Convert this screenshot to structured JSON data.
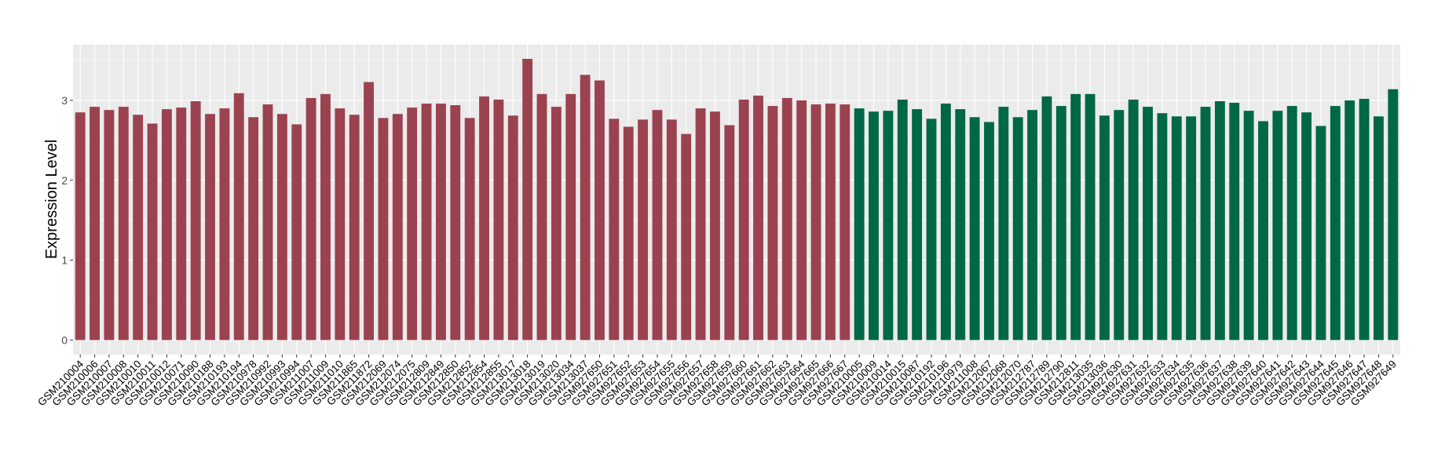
{
  "chart_data": {
    "type": "bar",
    "title": "",
    "xlabel": "",
    "ylabel": "Expression Level",
    "ylim": [
      -0.18,
      3.7
    ],
    "yticks": [
      0,
      1,
      2,
      3
    ],
    "grid": true,
    "legend": "none",
    "colors": {
      "group1": "#9B4250",
      "group2": "#006845",
      "panel": "#EBEBEB",
      "grid": "#FFFFFF"
    },
    "categories": [
      "GSM210004",
      "GSM210006",
      "GSM210007",
      "GSM210008",
      "GSM210010",
      "GSM210011",
      "GSM210012",
      "GSM210071",
      "GSM210090",
      "GSM210188",
      "GSM210193",
      "GSM210194",
      "GSM210978",
      "GSM210992",
      "GSM210993",
      "GSM210994",
      "GSM211007",
      "GSM211009",
      "GSM211010",
      "GSM211865",
      "GSM211872",
      "GSM212069",
      "GSM212074",
      "GSM212075",
      "GSM212809",
      "GSM212849",
      "GSM212850",
      "GSM212852",
      "GSM212854",
      "GSM212855",
      "GSM213017",
      "GSM213018",
      "GSM213019",
      "GSM213020",
      "GSM213034",
      "GSM213037",
      "GSM927650",
      "GSM927651",
      "GSM927652",
      "GSM927653",
      "GSM927654",
      "GSM927655",
      "GSM927656",
      "GSM927657",
      "GSM927658",
      "GSM927659",
      "GSM927660",
      "GSM927661",
      "GSM927662",
      "GSM927663",
      "GSM927664",
      "GSM927665",
      "GSM927666",
      "GSM927667",
      "GSM210005",
      "GSM210009",
      "GSM210014",
      "GSM210015",
      "GSM210087",
      "GSM210192",
      "GSM210196",
      "GSM210979",
      "GSM211008",
      "GSM212067",
      "GSM212068",
      "GSM212070",
      "GSM212787",
      "GSM212789",
      "GSM212790",
      "GSM212811",
      "GSM213035",
      "GSM213036",
      "GSM927630",
      "GSM927631",
      "GSM927632",
      "GSM927633",
      "GSM927634",
      "GSM927635",
      "GSM927636",
      "GSM927637",
      "GSM927638",
      "GSM927639",
      "GSM927640",
      "GSM927641",
      "GSM927642",
      "GSM927643",
      "GSM927644",
      "GSM927645",
      "GSM927646",
      "GSM927647",
      "GSM927648",
      "GSM927649"
    ],
    "values": [
      2.85,
      2.92,
      2.88,
      2.92,
      2.82,
      2.71,
      2.89,
      2.91,
      2.99,
      2.83,
      2.9,
      3.09,
      2.79,
      2.95,
      2.83,
      2.7,
      3.03,
      3.08,
      2.9,
      2.82,
      3.23,
      2.78,
      2.83,
      2.91,
      2.96,
      2.96,
      2.94,
      2.78,
      3.05,
      3.01,
      2.81,
      3.52,
      3.08,
      2.92,
      3.08,
      3.32,
      3.25,
      2.77,
      2.67,
      2.76,
      2.88,
      2.76,
      2.58,
      2.9,
      2.86,
      2.69,
      3.01,
      3.06,
      2.93,
      3.03,
      3.0,
      2.95,
      2.96,
      2.95,
      2.9,
      2.86,
      2.87,
      3.01,
      2.89,
      2.77,
      2.96,
      2.89,
      2.79,
      2.73,
      2.92,
      2.79,
      2.88,
      3.05,
      2.93,
      3.08,
      3.08,
      2.81,
      2.88,
      3.01,
      2.92,
      2.84,
      2.8,
      2.8,
      2.92,
      2.99,
      2.97,
      2.87,
      2.74,
      2.87,
      2.93,
      2.85,
      2.68,
      2.93,
      3.0,
      3.02,
      2.8,
      3.14
    ],
    "groups": [
      "group1",
      "group1",
      "group1",
      "group1",
      "group1",
      "group1",
      "group1",
      "group1",
      "group1",
      "group1",
      "group1",
      "group1",
      "group1",
      "group1",
      "group1",
      "group1",
      "group1",
      "group1",
      "group1",
      "group1",
      "group1",
      "group1",
      "group1",
      "group1",
      "group1",
      "group1",
      "group1",
      "group1",
      "group1",
      "group1",
      "group1",
      "group1",
      "group1",
      "group1",
      "group1",
      "group1",
      "group1",
      "group1",
      "group1",
      "group1",
      "group1",
      "group1",
      "group1",
      "group1",
      "group1",
      "group1",
      "group1",
      "group1",
      "group1",
      "group1",
      "group1",
      "group1",
      "group1",
      "group1",
      "group2",
      "group2",
      "group2",
      "group2",
      "group2",
      "group2",
      "group2",
      "group2",
      "group2",
      "group2",
      "group2",
      "group2",
      "group2",
      "group2",
      "group2",
      "group2",
      "group2",
      "group2",
      "group2",
      "group2",
      "group2",
      "group2",
      "group2",
      "group2",
      "group2",
      "group2",
      "group2",
      "group2",
      "group2",
      "group2",
      "group2",
      "group2",
      "group2",
      "group2",
      "group2",
      "group2",
      "group2",
      "group2"
    ]
  }
}
